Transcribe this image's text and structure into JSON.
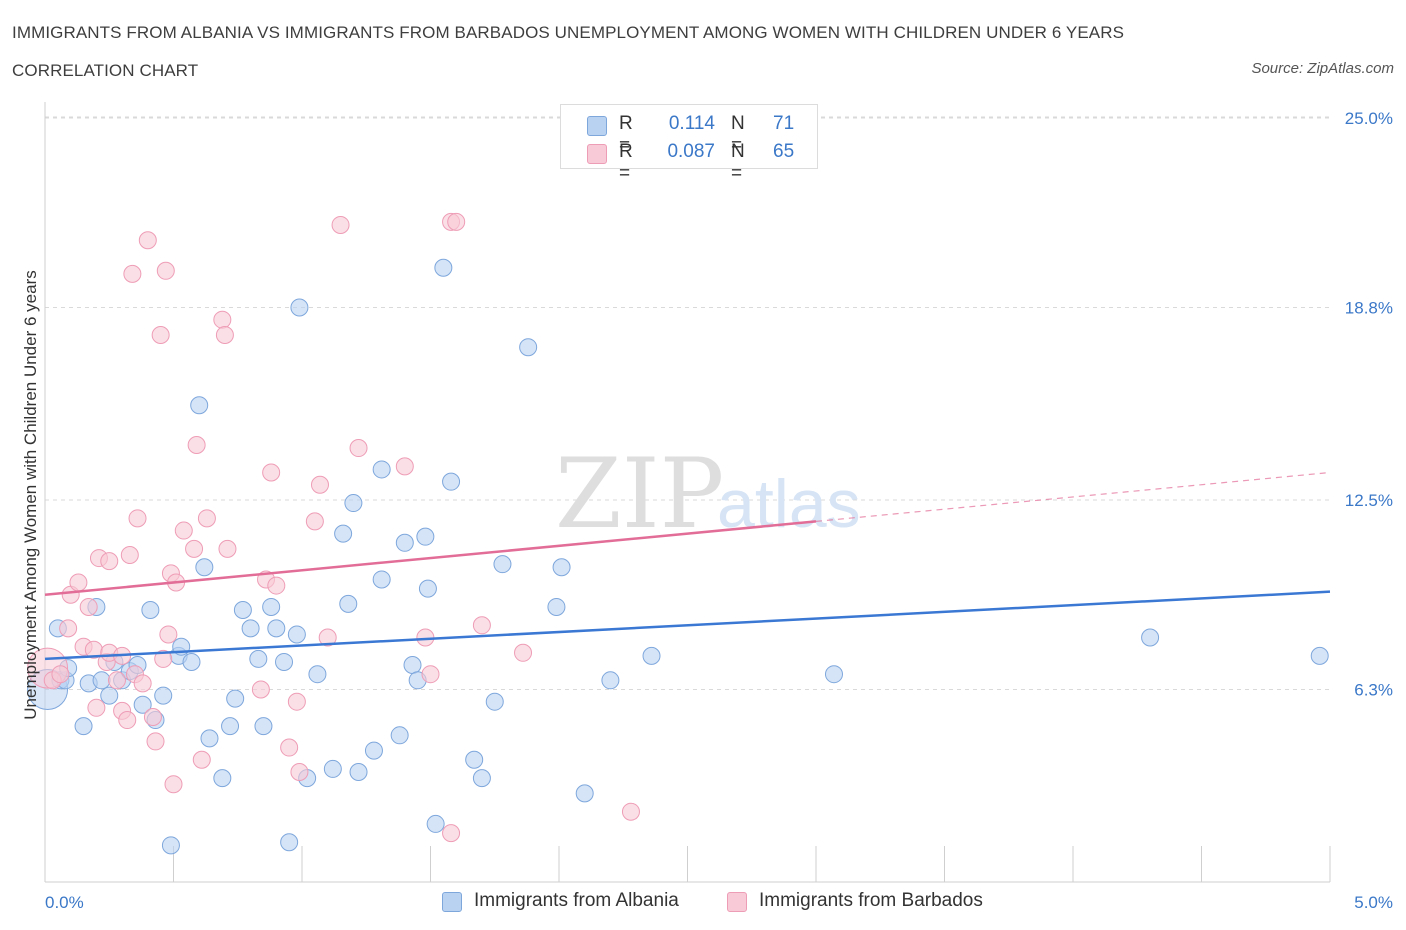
{
  "title": "IMMIGRANTS FROM ALBANIA VS IMMIGRANTS FROM BARBADOS UNEMPLOYMENT AMONG WOMEN WITH CHILDREN UNDER 6 YEARS CORRELATION CHART",
  "source": "Source: ZipAtlas.com",
  "watermark": {
    "zip": "ZIP",
    "atlas": "atlas"
  },
  "legend": {
    "albania": {
      "r_label": "R =",
      "r_value": "0.114",
      "n_label": "N =",
      "n_value": "71"
    },
    "barbados": {
      "r_label": "R =",
      "r_value": "0.087",
      "n_label": "N =",
      "n_value": "65"
    }
  },
  "colors": {
    "albania_fill": "#b9d2f2",
    "albania_stroke": "#7ea7dc",
    "albania_line": "#3a78d4",
    "barbados_fill": "#f8c9d6",
    "barbados_stroke": "#ee9db6",
    "barbados_line": "#e26d97",
    "axis_text": "#3b78c8",
    "grid": "#d9d9d9"
  },
  "chart_data": {
    "type": "scatter",
    "title": "IMMIGRANTS FROM ALBANIA VS IMMIGRANTS FROM BARBADOS UNEMPLOYMENT AMONG WOMEN WITH CHILDREN UNDER 6 YEARS CORRELATION CHART",
    "xlabel": "",
    "ylabel": "Unemployment Among Women with Children Under 6 years",
    "xlim": [
      0,
      5
    ],
    "ylim": [
      0,
      25
    ],
    "x_tick_labels": [
      "0.0%",
      "5.0%"
    ],
    "y_ticks": [
      6.3,
      12.5,
      18.8,
      25.0
    ],
    "y_tick_labels": [
      "6.3%",
      "12.5%",
      "18.8%",
      "25.0%"
    ],
    "grid": "horizontal dashed",
    "legend_position": "top-center",
    "series": [
      {
        "name": "Immigrants from Albania",
        "color": "#b9d2f2",
        "trend": {
          "x": [
            0,
            5
          ],
          "y": [
            7.3,
            9.5
          ],
          "dashed_from": 5
        },
        "points": [
          [
            0.01,
            6.3,
            "large"
          ],
          [
            0.05,
            8.3
          ],
          [
            0.06,
            6.6
          ],
          [
            0.08,
            6.6
          ],
          [
            0.09,
            7.0
          ],
          [
            0.15,
            5.1
          ],
          [
            0.17,
            6.5
          ],
          [
            0.2,
            9.0
          ],
          [
            0.22,
            6.6
          ],
          [
            0.25,
            6.1
          ],
          [
            0.27,
            7.2
          ],
          [
            0.3,
            6.6
          ],
          [
            0.33,
            6.9
          ],
          [
            0.36,
            7.1
          ],
          [
            0.38,
            5.8
          ],
          [
            0.41,
            8.9
          ],
          [
            0.43,
            5.3
          ],
          [
            0.46,
            6.1
          ],
          [
            0.49,
            1.2
          ],
          [
            0.52,
            7.4
          ],
          [
            0.53,
            7.7
          ],
          [
            0.57,
            7.2
          ],
          [
            0.6,
            15.6
          ],
          [
            0.62,
            10.3
          ],
          [
            0.64,
            4.7
          ],
          [
            0.69,
            3.4
          ],
          [
            0.72,
            5.1
          ],
          [
            0.74,
            6.0
          ],
          [
            0.77,
            8.9
          ],
          [
            0.8,
            8.3
          ],
          [
            0.83,
            7.3
          ],
          [
            0.85,
            5.1
          ],
          [
            0.88,
            9.0
          ],
          [
            0.9,
            8.3
          ],
          [
            0.93,
            7.2
          ],
          [
            0.95,
            1.3
          ],
          [
            0.98,
            8.1
          ],
          [
            0.99,
            18.8
          ],
          [
            1.02,
            3.4
          ],
          [
            1.06,
            6.8
          ],
          [
            1.12,
            3.7
          ],
          [
            1.16,
            11.4
          ],
          [
            1.18,
            9.1
          ],
          [
            1.2,
            12.4
          ],
          [
            1.22,
            3.6
          ],
          [
            1.28,
            4.3
          ],
          [
            1.31,
            9.9
          ],
          [
            1.31,
            13.5
          ],
          [
            1.38,
            4.8
          ],
          [
            1.4,
            11.1
          ],
          [
            1.43,
            7.1
          ],
          [
            1.45,
            6.6
          ],
          [
            1.48,
            11.3
          ],
          [
            1.49,
            9.6
          ],
          [
            1.52,
            1.9
          ],
          [
            1.55,
            20.1
          ],
          [
            1.58,
            13.1
          ],
          [
            1.67,
            4.0
          ],
          [
            1.7,
            3.4
          ],
          [
            1.75,
            5.9
          ],
          [
            1.78,
            10.4
          ],
          [
            1.88,
            17.5
          ],
          [
            1.99,
            9.0
          ],
          [
            2.01,
            10.3
          ],
          [
            2.1,
            2.9
          ],
          [
            2.2,
            6.6
          ],
          [
            2.36,
            7.4
          ],
          [
            3.07,
            6.8
          ],
          [
            4.3,
            8.0
          ],
          [
            4.96,
            7.4
          ]
        ]
      },
      {
        "name": "Immigrants from Barbados",
        "color": "#f8c9d6",
        "trend": {
          "x": [
            0,
            3.0
          ],
          "y": [
            9.4,
            11.8
          ],
          "dashed_x": [
            3.0,
            5.0
          ],
          "dashed_y": [
            11.8,
            13.4
          ]
        },
        "points": [
          [
            0.01,
            7.0,
            "large"
          ],
          [
            0.03,
            6.6
          ],
          [
            0.06,
            6.8
          ],
          [
            0.09,
            8.3
          ],
          [
            0.1,
            9.4
          ],
          [
            0.13,
            9.8
          ],
          [
            0.15,
            7.7
          ],
          [
            0.17,
            9.0
          ],
          [
            0.19,
            7.6
          ],
          [
            0.2,
            5.7
          ],
          [
            0.21,
            10.6
          ],
          [
            0.24,
            7.2
          ],
          [
            0.25,
            7.5
          ],
          [
            0.25,
            10.5
          ],
          [
            0.28,
            6.6
          ],
          [
            0.3,
            7.4
          ],
          [
            0.3,
            5.6
          ],
          [
            0.32,
            5.3
          ],
          [
            0.33,
            10.7
          ],
          [
            0.34,
            19.9
          ],
          [
            0.35,
            6.8
          ],
          [
            0.36,
            11.9
          ],
          [
            0.38,
            6.5
          ],
          [
            0.4,
            21.0
          ],
          [
            0.42,
            5.4
          ],
          [
            0.43,
            4.6
          ],
          [
            0.45,
            17.9
          ],
          [
            0.46,
            7.3
          ],
          [
            0.47,
            20.0
          ],
          [
            0.48,
            8.1
          ],
          [
            0.49,
            10.1
          ],
          [
            0.5,
            3.2
          ],
          [
            0.51,
            9.8
          ],
          [
            0.54,
            11.5
          ],
          [
            0.58,
            10.9
          ],
          [
            0.59,
            14.3
          ],
          [
            0.61,
            4.0
          ],
          [
            0.63,
            11.9
          ],
          [
            0.69,
            18.4
          ],
          [
            0.7,
            17.9
          ],
          [
            0.71,
            10.9
          ],
          [
            0.84,
            6.3
          ],
          [
            0.86,
            9.9
          ],
          [
            0.88,
            13.4
          ],
          [
            0.9,
            9.7
          ],
          [
            0.95,
            4.4
          ],
          [
            0.98,
            5.9
          ],
          [
            0.99,
            3.6
          ],
          [
            1.05,
            11.8
          ],
          [
            1.07,
            13.0
          ],
          [
            1.1,
            8.0
          ],
          [
            1.15,
            21.5
          ],
          [
            1.22,
            14.2
          ],
          [
            1.4,
            13.6
          ],
          [
            1.48,
            8.0
          ],
          [
            1.5,
            6.8
          ],
          [
            1.58,
            1.6
          ],
          [
            1.58,
            21.6
          ],
          [
            1.6,
            21.6
          ],
          [
            1.7,
            8.4
          ],
          [
            1.86,
            7.5
          ],
          [
            2.28,
            2.3
          ]
        ]
      }
    ]
  },
  "bottom_legend": {
    "albania": "Immigrants from Albania",
    "barbados": "Immigrants from Barbados"
  }
}
